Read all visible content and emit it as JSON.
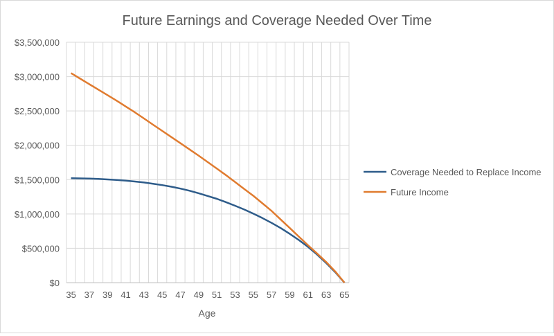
{
  "chart_data": {
    "type": "line",
    "title": "Future Earnings and Coverage Needed Over Time",
    "xlabel": "Age",
    "ylabel": "",
    "x": [
      35,
      36,
      37,
      38,
      39,
      40,
      41,
      42,
      43,
      44,
      45,
      46,
      47,
      48,
      49,
      50,
      51,
      52,
      53,
      54,
      55,
      56,
      57,
      58,
      59,
      60,
      61,
      62,
      63,
      64,
      65
    ],
    "x_tick_labels": [
      "35",
      "37",
      "39",
      "41",
      "43",
      "45",
      "47",
      "49",
      "51",
      "53",
      "55",
      "57",
      "59",
      "61",
      "63",
      "65"
    ],
    "ylim": [
      0,
      3500000
    ],
    "y_ticks": [
      0,
      500000,
      1000000,
      1500000,
      2000000,
      2500000,
      3000000,
      3500000
    ],
    "y_tick_labels": [
      "$0",
      "$500,000",
      "$1,000,000",
      "$1,500,000",
      "$2,000,000",
      "$2,500,000",
      "$3,000,000",
      "$3,500,000"
    ],
    "grid": "both",
    "legend_position": "right",
    "series": [
      {
        "name": "Coverage Needed to Replace Income",
        "color": "#2e5c8a",
        "values": [
          1520000,
          1518000,
          1515000,
          1510000,
          1503000,
          1495000,
          1485000,
          1473000,
          1458000,
          1440000,
          1420000,
          1397000,
          1370000,
          1338000,
          1302000,
          1262000,
          1220000,
          1172000,
          1120000,
          1065000,
          1005000,
          940000,
          870000,
          795000,
          710000,
          620000,
          520000,
          410000,
          285000,
          150000,
          0
        ]
      },
      {
        "name": "Future Income",
        "color": "#e07b2f",
        "values": [
          3050000,
          2970000,
          2890000,
          2810000,
          2730000,
          2650000,
          2565000,
          2480000,
          2390000,
          2300000,
          2210000,
          2120000,
          2030000,
          1940000,
          1850000,
          1755000,
          1660000,
          1565000,
          1465000,
          1365000,
          1265000,
          1155000,
          1045000,
          920000,
          795000,
          670000,
          545000,
          425000,
          300000,
          160000,
          0
        ]
      }
    ]
  }
}
